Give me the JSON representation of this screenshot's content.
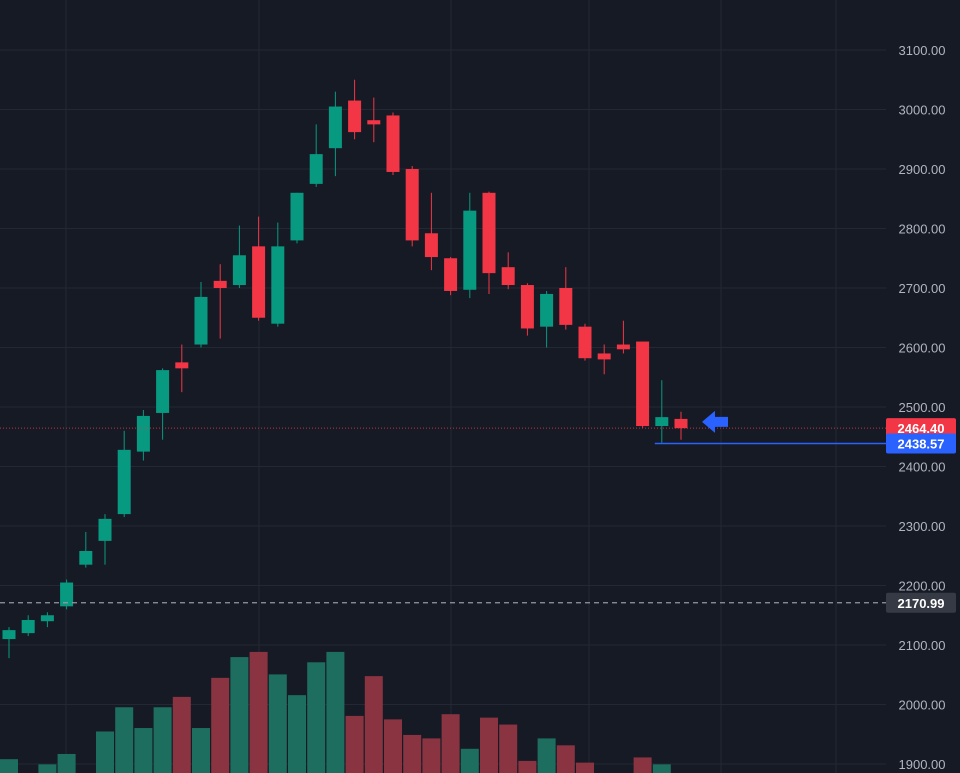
{
  "chart_data": {
    "type": "candlestick",
    "y_axis": {
      "ticks": [
        "3100.00",
        "3000.00",
        "2900.00",
        "2800.00",
        "2700.00",
        "2600.00",
        "2500.00",
        "2400.00",
        "2300.00",
        "2200.00",
        "2100.00",
        "2000.00",
        "1900.00"
      ],
      "ylim": [
        1885,
        3180
      ],
      "position": "right"
    },
    "grid": true,
    "candles": [
      {
        "o": 2110,
        "h": 2130,
        "l": 2078,
        "c": 2125
      },
      {
        "o": 2120,
        "h": 2150,
        "l": 2115,
        "c": 2142
      },
      {
        "o": 2140,
        "h": 2155,
        "l": 2130,
        "c": 2150
      },
      {
        "o": 2165,
        "h": 2210,
        "l": 2160,
        "c": 2205
      },
      {
        "o": 2235,
        "h": 2290,
        "l": 2230,
        "c": 2258
      },
      {
        "o": 2275,
        "h": 2320,
        "l": 2235,
        "c": 2312
      },
      {
        "o": 2320,
        "h": 2460,
        "l": 2315,
        "c": 2428
      },
      {
        "o": 2425,
        "h": 2495,
        "l": 2410,
        "c": 2485
      },
      {
        "o": 2490,
        "h": 2565,
        "l": 2445,
        "c": 2562
      },
      {
        "o": 2575,
        "h": 2605,
        "l": 2525,
        "c": 2565
      },
      {
        "o": 2605,
        "h": 2710,
        "l": 2600,
        "c": 2685
      },
      {
        "o": 2712,
        "h": 2740,
        "l": 2615,
        "c": 2700
      },
      {
        "o": 2705,
        "h": 2805,
        "l": 2700,
        "c": 2755
      },
      {
        "o": 2770,
        "h": 2820,
        "l": 2645,
        "c": 2650
      },
      {
        "o": 2640,
        "h": 2810,
        "l": 2635,
        "c": 2770
      },
      {
        "o": 2780,
        "h": 2860,
        "l": 2775,
        "c": 2860
      },
      {
        "o": 2875,
        "h": 2975,
        "l": 2870,
        "c": 2925
      },
      {
        "o": 2935,
        "h": 3030,
        "l": 2888,
        "c": 3005
      },
      {
        "o": 3015,
        "h": 3050,
        "l": 2950,
        "c": 2962
      },
      {
        "o": 2982,
        "h": 3020,
        "l": 2945,
        "c": 2975
      },
      {
        "o": 2990,
        "h": 2995,
        "l": 2890,
        "c": 2895
      },
      {
        "o": 2900,
        "h": 2905,
        "l": 2770,
        "c": 2780
      },
      {
        "o": 2792,
        "h": 2860,
        "l": 2730,
        "c": 2752
      },
      {
        "o": 2750,
        "h": 2752,
        "l": 2688,
        "c": 2695
      },
      {
        "o": 2697,
        "h": 2860,
        "l": 2683,
        "c": 2830
      },
      {
        "o": 2860,
        "h": 2862,
        "l": 2690,
        "c": 2725
      },
      {
        "o": 2735,
        "h": 2760,
        "l": 2698,
        "c": 2705
      },
      {
        "o": 2705,
        "h": 2708,
        "l": 2620,
        "c": 2632
      },
      {
        "o": 2635,
        "h": 2695,
        "l": 2600,
        "c": 2690
      },
      {
        "o": 2700,
        "h": 2735,
        "l": 2630,
        "c": 2638
      },
      {
        "o": 2635,
        "h": 2640,
        "l": 2578,
        "c": 2582
      },
      {
        "o": 2590,
        "h": 2605,
        "l": 2555,
        "c": 2580
      },
      {
        "o": 2605,
        "h": 2645,
        "l": 2590,
        "c": 2597
      },
      {
        "o": 2610,
        "h": 2610,
        "l": 2465,
        "c": 2468
      },
      {
        "o": 2468,
        "h": 2545,
        "l": 2440,
        "c": 2483
      },
      {
        "o": 2480,
        "h": 2492,
        "l": 2445,
        "c": 2464.4
      }
    ],
    "volume": {
      "ylim": [
        0,
        100
      ],
      "values": [
        8,
        0,
        5,
        11,
        0,
        24,
        38,
        26,
        38,
        44,
        26,
        55,
        67,
        70,
        57,
        45,
        64,
        70,
        33,
        56,
        31,
        22,
        20,
        34,
        14,
        32,
        28,
        7,
        20,
        16,
        6,
        0,
        0,
        9,
        5,
        0
      ],
      "colors": [
        "up",
        "up",
        "up",
        "up",
        "up",
        "up",
        "up",
        "up",
        "up",
        "down",
        "up",
        "down",
        "up",
        "down",
        "up",
        "up",
        "up",
        "up",
        "down",
        "down",
        "down",
        "down",
        "down",
        "down",
        "up",
        "down",
        "down",
        "down",
        "up",
        "down",
        "down",
        "down",
        "down",
        "down",
        "up",
        "down"
      ]
    },
    "price_lines": [
      {
        "value": 2464.4,
        "label": "2464.40",
        "style": "dotted",
        "color": "#f23645"
      },
      {
        "value": 2438.57,
        "label": "2438.57",
        "style": "solid",
        "color": "#2962ff"
      },
      {
        "value": 2170.99,
        "label": "2170.99",
        "style": "dashed",
        "color": "#9598a1"
      }
    ],
    "annotation": {
      "type": "arrow",
      "direction": "left",
      "color": "#2962ff",
      "value": 2475
    }
  },
  "colors": {
    "background": "#161a25",
    "grid": "#232834",
    "up": "#089981",
    "down": "#f23645",
    "vol_up": "#1d6e5f",
    "vol_down": "#8a3441",
    "axis_text": "#b2b5be"
  }
}
